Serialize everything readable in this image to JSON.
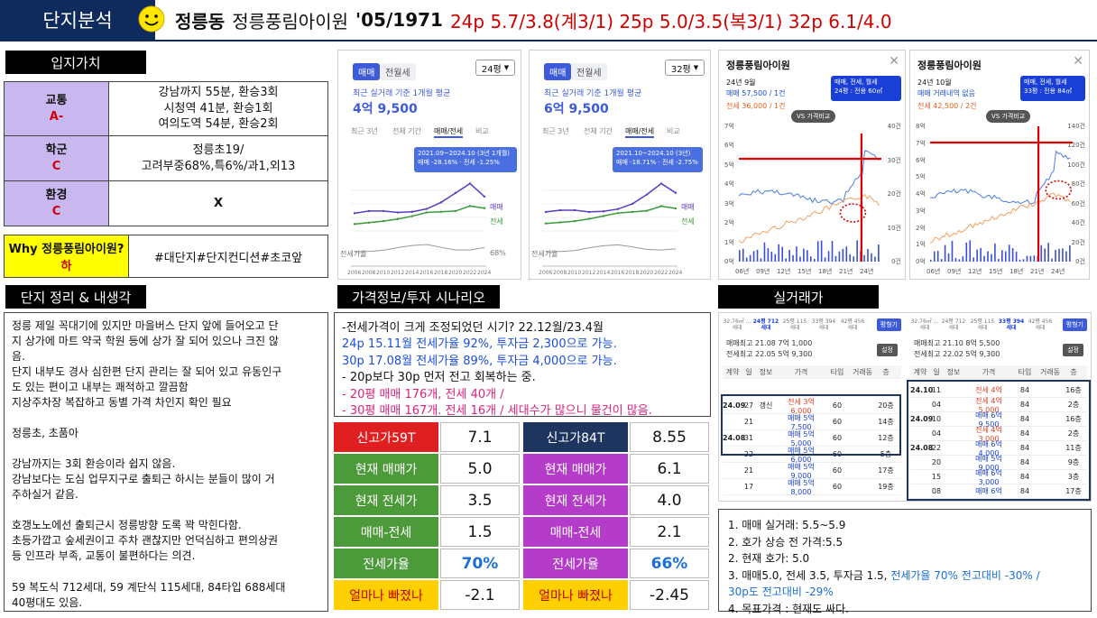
{
  "header": {
    "tag": "단지분석",
    "district": "정릉동",
    "complex": "정릉풍림아이원",
    "meta": "'05/1971",
    "sizes": "24p 5.7/3.8(계3/1) 25p 5.0/3.5(복3/1) 32p 6.1/4.0"
  },
  "location": {
    "title": "입지가치",
    "rows": [
      {
        "label": "교통",
        "grade": "A-",
        "value_lines": [
          "강남까지 55분, 환승3회",
          "시청역 41분, 환승1회",
          "여의도역 54분, 환승2회"
        ]
      },
      {
        "label": "학군",
        "grade": "C",
        "value_lines": [
          "정릉초19/",
          "고려부중68%,특6%/과1,외13"
        ]
      },
      {
        "label": "환경",
        "grade": "C",
        "value_lines": [
          "X"
        ]
      }
    ],
    "why_label": "Why 정릉풍림아이원?",
    "why_grade": "하",
    "why_value": "#대단지#단지컨디션#초코앞"
  },
  "summary": {
    "title": "단지 정리 & 내생각",
    "text": "정릉 제일 꼭대기에 있지만 마을버스 단지 앞에 들어오고 단\n지 상가에 마트 약국 학원 등에 상가 잘 되어 있으나 크진 않\n음.\n단지 내부도 경사 심한편 단지 관리는 잘 되어 있고 유동인구\n도 있는 편이고 내부는 쾌적하고 깔끔함\n지상주차장 복잡하고 동별 가격 차인지 확인 필요\n\n정릉초, 초품아\n\n강남까지는 3회 환승이라 쉽지 않음.\n강남보다는 도심 업무지구로 출퇴근 하시는 분들이 많이 거\n주하실거 같음.\n\n호갱노노에선 출퇴근시 정릉방향 도록 꽉 막힌다함.\n초등가깝고 숲세권이고 주차 괜찮지만 언덕심하고 편의상권\n등 인프라 부족, 교통이 불편하다는 의견.\n\n59 복도식 712세대, 59 계단식 115세대, 84타입 688세대\n40평대도 있음."
  },
  "scenario": {
    "title": "가격정보/투자 시나리오",
    "lines": [
      {
        "text": "-전세가격이 크게 조정되었던 시기? 22.12월/23.4월",
        "color": "black"
      },
      {
        "text": "24p 15.11월 전세가율 92%, 투자금 2,300으로 가능.",
        "color": "blue"
      },
      {
        "text": "30p 17.08월 전세가율 89%, 투자금 4,000으로 가능.",
        "color": "blue"
      },
      {
        "text": "- 20p보다 30p 먼저 전고 회복하는 중.",
        "color": "black"
      },
      {
        "text": "-   20평 매매 176개, 전세 40개 /",
        "color": "pink"
      },
      {
        "text": "-   30평 매매 167개. 전세 16개 / 세대수가 많으니 물건이 많음.",
        "color": "pink"
      }
    ]
  },
  "metrics": {
    "left": [
      {
        "label": "신고가59T",
        "value": "7.1"
      },
      {
        "label": "현재 매매가",
        "value": "5.0"
      },
      {
        "label": "현재 전세가",
        "value": "3.5"
      },
      {
        "label": "매매-전세",
        "value": "1.5"
      },
      {
        "label": "전세가율",
        "value": "70%"
      },
      {
        "label": "얼마나 빠졌나",
        "value": "-2.1"
      }
    ],
    "right": [
      {
        "label": "신고가84T",
        "value": "8.55"
      },
      {
        "label": "현재 매매가",
        "value": "6.1"
      },
      {
        "label": "현재 전세가",
        "value": "4.0"
      },
      {
        "label": "매매-전세",
        "value": "2.1"
      },
      {
        "label": "전세가율",
        "value": "66%"
      },
      {
        "label": "얼마나 빠졌나",
        "value": "-2.45"
      }
    ]
  },
  "price_charts": [
    {
      "tab_sale": "매매",
      "tab_jeonse": "전월세",
      "size": "24평",
      "caption": "최근 실거래 기준 1개월 평균",
      "price": "4억 9,500",
      "tabs": [
        "최근 3년",
        "전체 기간",
        "매매/전세",
        "비교"
      ],
      "tip_period": "2021.09~2024.10 (3년 1개월)",
      "tip_change": "매매 -28.16% · 전세 -1.25%",
      "legend_sale": "매매",
      "legend_jeonse": "전세",
      "sub_label": "전세가율",
      "sub_right": "68%",
      "years": [
        "2006",
        "2008",
        "2010",
        "2012",
        "2014",
        "2016",
        "2018",
        "2020",
        "2022",
        "2024"
      ],
      "chart_data": {
        "type": "line",
        "x": [
          "2006",
          "2008",
          "2010",
          "2012",
          "2014",
          "2016",
          "2018",
          "2020",
          "2022",
          "2024"
        ],
        "series": [
          {
            "name": "매매",
            "values": [
              2.7,
              3.0,
              3.0,
              2.8,
              2.9,
              3.3,
              4.2,
              5.5,
              6.8,
              5.0
            ]
          },
          {
            "name": "전세",
            "values": [
              1.2,
              1.4,
              1.6,
              1.9,
              2.3,
              2.8,
              2.9,
              3.0,
              3.7,
              3.4
            ]
          }
        ]
      }
    },
    {
      "tab_sale": "매매",
      "tab_jeonse": "전월세",
      "size": "32평",
      "caption": "최근 실거래 기준 1개월 평균",
      "price": "6억 9,500",
      "tabs": [
        "최근 3년",
        "전체 기간",
        "매매/전세",
        "비교"
      ],
      "tip_period": "2021.10~2024.10 (3년)",
      "tip_change": "매매 -18.71% · 전세 -2.75%",
      "legend_sale": "매매",
      "legend_jeonse": "전세",
      "sub_label": "전세가율",
      "sub_right": "",
      "years": [
        "2006",
        "2008",
        "2010",
        "2012",
        "2014",
        "2016",
        "2018",
        "2020",
        "2022",
        "2024"
      ],
      "chart_data": {
        "type": "line",
        "x": [
          "2006",
          "2008",
          "2010",
          "2012",
          "2014",
          "2016",
          "2018",
          "2020",
          "2022",
          "2024"
        ],
        "series": [
          {
            "name": "매매",
            "values": [
              3.6,
              3.9,
              3.9,
              3.6,
              3.7,
              4.1,
              5.0,
              6.6,
              8.5,
              6.9
            ]
          },
          {
            "name": "전세",
            "values": [
              1.6,
              1.8,
              2.0,
              2.4,
              2.9,
              3.4,
              3.6,
              3.8,
              4.6,
              4.2
            ]
          }
        ]
      }
    }
  ],
  "trade_charts": [
    {
      "title": "정릉풍림아이원",
      "month": "24년 9월",
      "sale": "매매 57,500 / 1건",
      "jeonse": "전세 36,000 / 1건",
      "filter1": "매매, 전세, 월세",
      "filter2": "24평 : 전용 60㎡",
      "compare": "VS 가격비교",
      "y_left": [
        "7억",
        "6억",
        "5억",
        "4억",
        "3억",
        "2억",
        "1억",
        "0억"
      ],
      "y_right": [
        "40건",
        "30건",
        "20건",
        "10건",
        "0건"
      ],
      "x_labels": [
        "06년",
        "09년",
        "12년",
        "15년",
        "18년",
        "21년",
        "24년"
      ]
    },
    {
      "title": "정릉풍림아이원",
      "month": "24년 10월",
      "sale": "매매 거래내역 없음",
      "jeonse": "전세 42,500 / 2건",
      "filter1": "매매, 전세, 월세",
      "filter2": "33평 : 전용 84㎡",
      "compare": "VS 가격비교",
      "y_left": [
        "8억",
        "7억",
        "6억",
        "5억",
        "4억",
        "3억",
        "2억",
        "1억",
        "0억"
      ],
      "y_right": [
        "140건",
        "120건",
        "100건",
        "80건",
        "60건",
        "40건",
        "20건",
        "0건"
      ],
      "x_labels": [
        "06년",
        "09년",
        "12년",
        "15년",
        "18년",
        "21년",
        "24년"
      ]
    }
  ],
  "deals": {
    "title": "실거래가",
    "left": {
      "tabs": [
        "32.76㎡ ...세대",
        "24평 712세대",
        "25평 115세대",
        "33평 394세대",
        "42평 456세대"
      ],
      "btn": "평형기",
      "top1": "매매최고 21.08 7억 1,000",
      "top2": "전세최고 22.05 5억 9,300",
      "setting": "설정",
      "cols": [
        "계약",
        "일",
        "정보",
        "가격",
        "타입",
        "거래동",
        "층"
      ],
      "rows": [
        [
          "24.09",
          "27",
          "갱신",
          "전세 3억 6,000",
          "60",
          "",
          "20층"
        ],
        [
          "",
          "21",
          "",
          "매매 5억 7,500",
          "60",
          "",
          "14층"
        ],
        [
          "24.08",
          "31",
          "",
          "매매 5억 5,000",
          "60",
          "",
          "12층"
        ],
        [
          "",
          "22",
          "",
          "매매 5억 6,000",
          "60",
          "",
          "5층"
        ],
        [
          "",
          "21",
          "",
          "매매 5억 9,000",
          "60",
          "",
          "17층"
        ],
        [
          "",
          "17",
          "",
          "매매 5억 8,000",
          "60",
          "",
          "19층"
        ]
      ]
    },
    "right": {
      "tabs": [
        "32.76㎡ ...세대",
        "24평 712세대",
        "25평 115세대",
        "33평 394세대",
        "42평 456세대"
      ],
      "btn": "평형기",
      "top1": "매매최고 21.10 8억 5,500",
      "top2": "전세최고 22.02 5억 9,300",
      "setting": "설정",
      "cols": [
        "계약",
        "일",
        "정보",
        "가격",
        "타입",
        "거래동",
        "층"
      ],
      "rows": [
        [
          "24.10",
          "11",
          "",
          "전세 4억",
          "84",
          "",
          "16층"
        ],
        [
          "",
          "04",
          "",
          "전세 4억 5,000",
          "84",
          "",
          "2층"
        ],
        [
          "24.09",
          "10",
          "",
          "매매 6억 9,500",
          "84",
          "",
          "16층"
        ],
        [
          "",
          "04",
          "",
          "전세 4억 3,000",
          "84",
          "",
          "2층"
        ],
        [
          "24.08",
          "22",
          "",
          "매매 6억 4,000",
          "84",
          "",
          "11층"
        ],
        [
          "",
          "20",
          "",
          "매매 5억 9,000",
          "84",
          "",
          "9층"
        ],
        [
          "",
          "15",
          "",
          "매매 6억 3,000",
          "84",
          "",
          "3층"
        ],
        [
          "",
          "08",
          "",
          "매매 6억",
          "84",
          "",
          "17층"
        ]
      ]
    }
  },
  "conclusion": {
    "lines": [
      {
        "text": "1. 매매 실거래: 5.5~5.9",
        "blue": ""
      },
      {
        "text": "2. 호가 상승 전 가격:5.5",
        "blue": ""
      },
      {
        "text": "2. 현재 호가: 5.0",
        "blue": ""
      },
      {
        "text": "3. 매매5.0, 전세 3.5, 투자금 1.5, ",
        "blue": "전세가율 70% 전고대비 -30% /"
      },
      {
        "text": "",
        "blue": "30p도 전고대비 -29%"
      },
      {
        "text": "4. 목표가격 : 현재도 싸다.",
        "blue": ""
      }
    ]
  },
  "colors": {
    "navy": "#0f2a5c",
    "purple_label": "#c9b8f0",
    "red": "#d00000",
    "green": "#4d9a3a",
    "magenta": "#b43cc8",
    "yellow": "#ffd000",
    "dark_navy": "#1e3560"
  }
}
